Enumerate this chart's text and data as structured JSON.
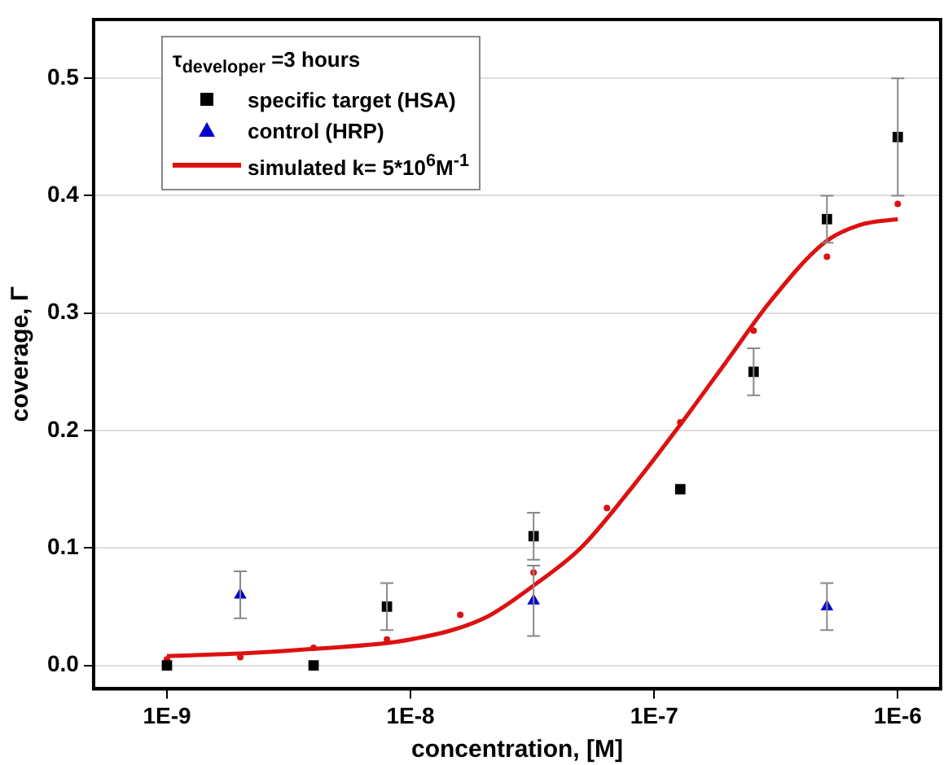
{
  "chart_data": {
    "type": "scatter",
    "xlabel": "concentration, [M]",
    "ylabel": "coverage, Γ",
    "legend_title": "τ$_{developer}$ =3 hours",
    "log": "x",
    "grid": "y",
    "legend": "top left",
    "xlim": [
      5e-10,
      1.5e-06
    ],
    "xticks": [
      {
        "value": 1e-09,
        "label": "1E-9"
      },
      {
        "value": 1e-08,
        "label": "1E-8"
      },
      {
        "value": 1e-07,
        "label": "1E-7"
      },
      {
        "value": 1e-06,
        "label": "1E-6"
      }
    ],
    "ylim": [
      -0.02,
      0.55
    ],
    "yticks": [
      {
        "value": 0,
        "label": "0.0"
      },
      {
        "value": 0.1,
        "label": "0.1"
      },
      {
        "value": 0.2,
        "label": "0.2"
      },
      {
        "value": 0.3,
        "label": "0.3"
      },
      {
        "value": 0.4,
        "label": "0.4"
      },
      {
        "value": 0.5,
        "label": "0.5"
      }
    ],
    "series": [
      {
        "name": "specific target (HSA)",
        "type": "scatter",
        "marker": "square",
        "color": "#000000",
        "x": [
          1e-09,
          4e-09,
          8e-09,
          3.2e-08,
          1.28e-07,
          2.56e-07,
          5.12e-07,
          1e-06
        ],
        "values": [
          0,
          0,
          0.05,
          0.11,
          0.15,
          0.25,
          0.38,
          0.45
        ],
        "errors": [
          null,
          null,
          0.02,
          0.02,
          null,
          0.02,
          0.02,
          0.05
        ]
      },
      {
        "name": "control (HRP)",
        "type": "scatter",
        "marker": "triangle",
        "color": "#0000cc",
        "x": [
          2e-09,
          3.2e-08,
          5.12e-07
        ],
        "values": [
          0.06,
          0.055,
          0.05
        ],
        "errors": [
          0.02,
          0.03,
          0.02
        ]
      },
      {
        "name": "simulated k= 5*10$^{6}$M$^{-1}$",
        "type": "line",
        "marker": "none",
        "color": "#dd1111",
        "x": [
          1e-09,
          2e-09,
          4e-09,
          1e-08,
          2e-08,
          3.2e-08,
          5e-08,
          8e-08,
          1.28e-07,
          2e-07,
          3e-07,
          5e-07,
          7e-07,
          1e-06
        ],
        "values": [
          0.008,
          0.01,
          0.014,
          0.022,
          0.04,
          0.068,
          0.1,
          0.15,
          0.205,
          0.26,
          0.31,
          0.36,
          0.375,
          0.38
        ]
      },
      {
        "type": "scatter",
        "marker": "circle",
        "color": "#dd1111",
        "x": [
          1e-09,
          2e-09,
          4e-09,
          8e-09,
          1.6e-08,
          3.2e-08,
          6.4e-08,
          1.28e-07,
          2.56e-07,
          5.12e-07,
          1e-06
        ],
        "values": [
          0.005,
          0.007,
          0.015,
          0.022,
          0.043,
          0.079,
          0.134,
          0.207,
          0.285,
          0.348,
          0.393
        ]
      }
    ]
  }
}
